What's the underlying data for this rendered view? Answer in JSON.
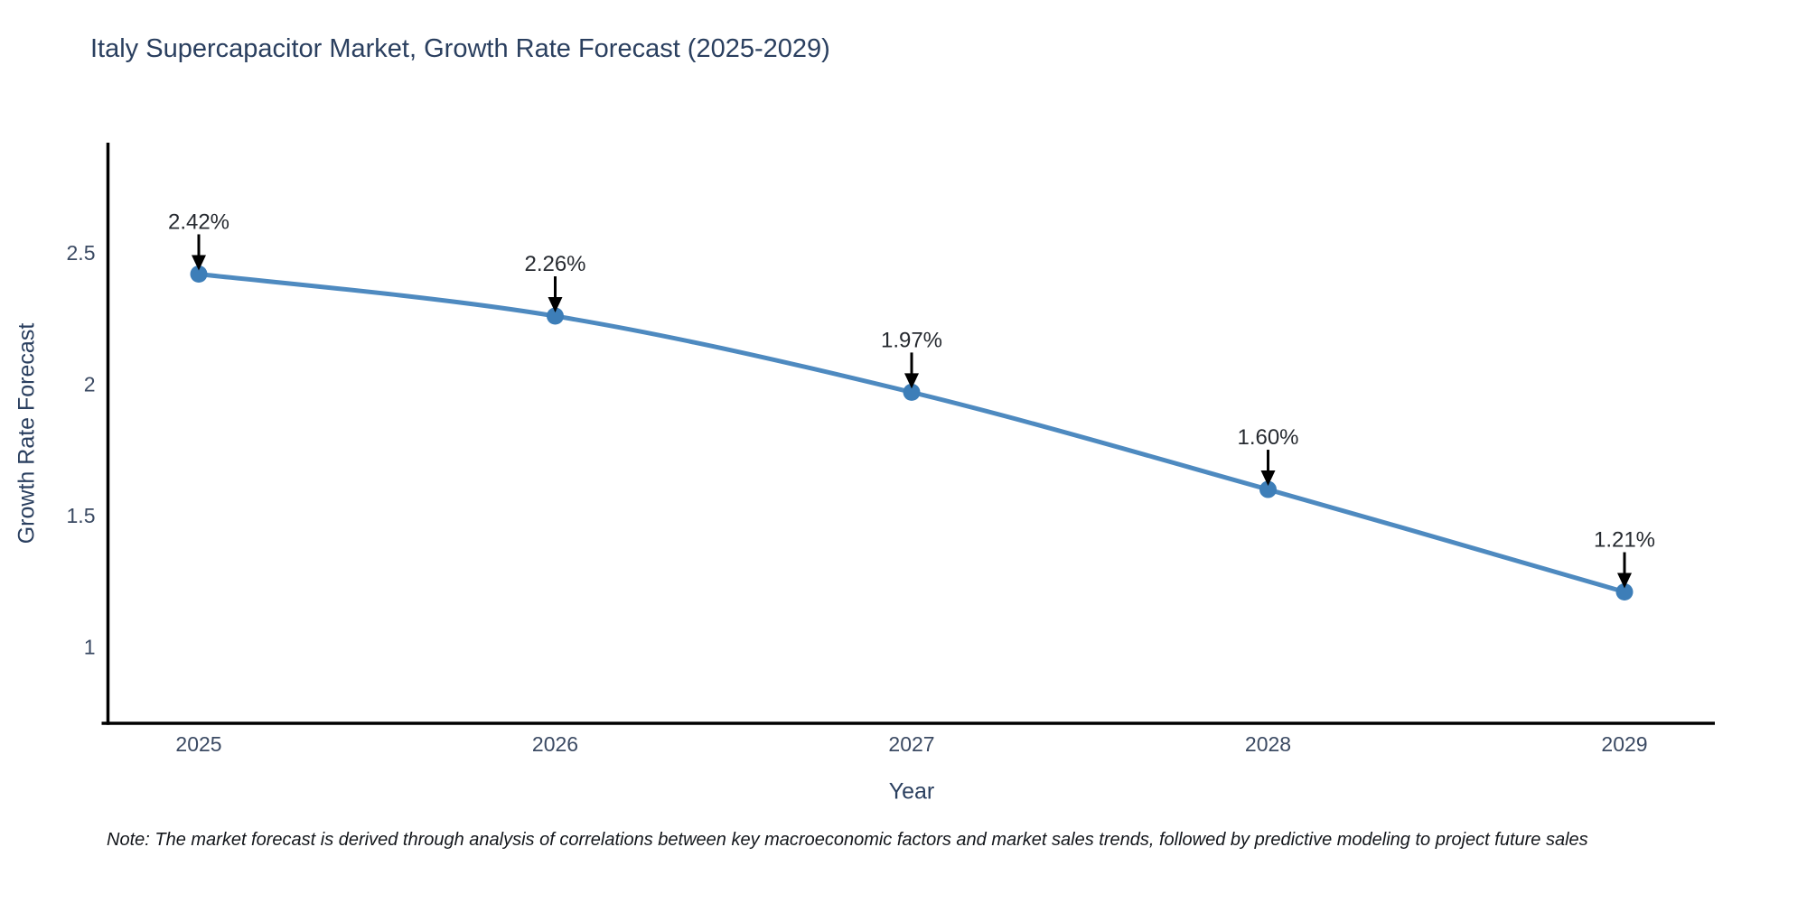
{
  "chart_data": {
    "type": "line",
    "title": "Italy Supercapacitor Market, Growth Rate Forecast (2025-2029)",
    "xlabel": "Year",
    "ylabel": "Growth Rate Forecast",
    "categories": [
      "2025",
      "2026",
      "2027",
      "2028",
      "2029"
    ],
    "values": [
      2.42,
      2.26,
      1.97,
      1.6,
      1.21
    ],
    "point_labels": [
      "2.42%",
      "2.26%",
      "1.97%",
      "1.60%",
      "1.21%"
    ],
    "yticks": [
      1,
      1.5,
      2,
      2.5
    ],
    "ylim": [
      0.71,
      2.92
    ],
    "grid": false,
    "legend": "none",
    "line_color": "#4e8ac0",
    "marker_color": "#3d7eb8",
    "axis_color": "#000000",
    "title_color": "#2a3f5f",
    "tick_color": "#3b4a63",
    "annotation_color": "#262a30",
    "annotation_arrow_color": "#000000"
  },
  "note": {
    "text": "Note: The market forecast is derived through analysis of correlations between key macroeconomic factors and market sales trends, followed by predictive modeling to project future sales"
  }
}
